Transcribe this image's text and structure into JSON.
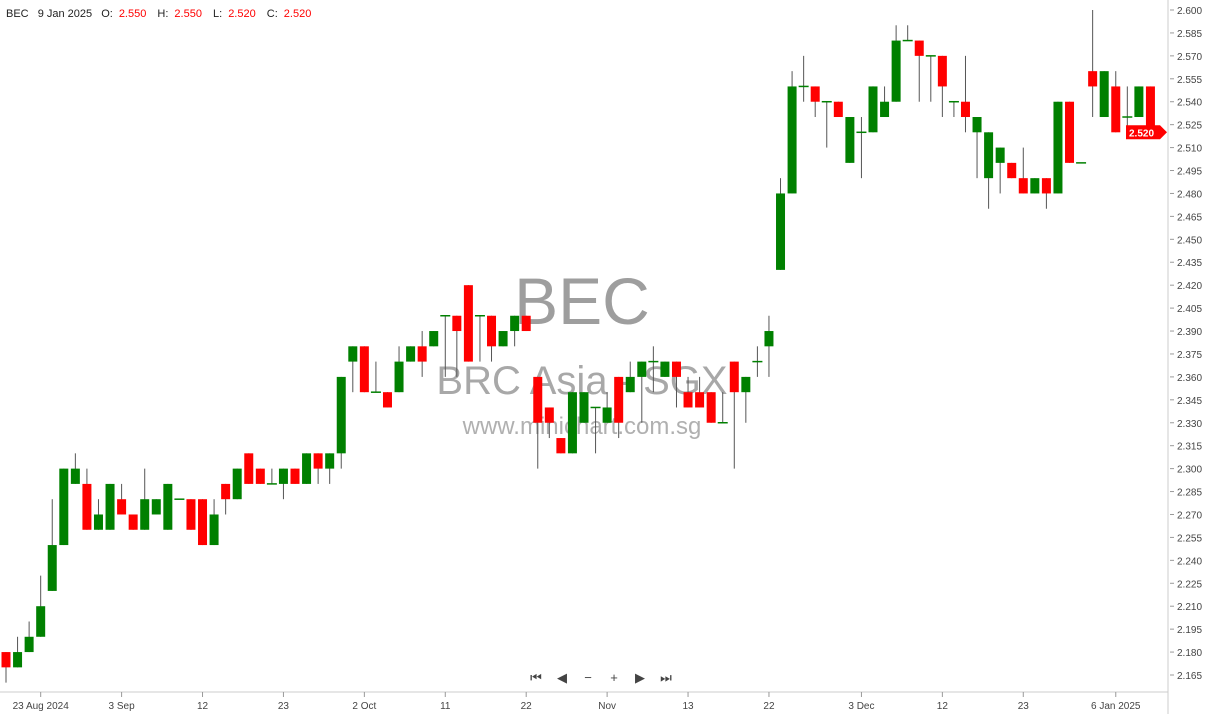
{
  "header": {
    "symbol": "BEC",
    "date": "9 Jan 2025",
    "o_label": "O:",
    "o": "2.550",
    "h_label": "H:",
    "h": "2.550",
    "l_label": "L:",
    "l": "2.520",
    "c_label": "C:",
    "c": "2.520"
  },
  "watermark": {
    "code": "BEC",
    "name": "BRC Asia - SGX",
    "site": "www.minichart.com.sg"
  },
  "nav": {
    "first": "⏮",
    "prev": "◀",
    "zoom_out": "−",
    "zoom_in": "+",
    "next": "▶",
    "last": "⏭"
  },
  "colors": {
    "up": "#008000",
    "down": "#ff0000",
    "wick": "#555555",
    "last_price": "#ff0000"
  },
  "chart_data": {
    "type": "candlestick",
    "title": "",
    "ylim": [
      2.165,
      2.6
    ],
    "y_ticks": [
      "2.600",
      "2.585",
      "2.570",
      "2.555",
      "2.540",
      "2.525",
      "2.510",
      "2.495",
      "2.480",
      "2.465",
      "2.450",
      "2.435",
      "2.420",
      "2.405",
      "2.390",
      "2.375",
      "2.360",
      "2.345",
      "2.330",
      "2.315",
      "2.300",
      "2.285",
      "2.270",
      "2.255",
      "2.240",
      "2.225",
      "2.210",
      "2.195",
      "2.180",
      "2.165"
    ],
    "x_ticks": [
      {
        "label": "23 Aug 2024",
        "index": 3
      },
      {
        "label": "3 Sep",
        "index": 10
      },
      {
        "label": "12",
        "index": 17
      },
      {
        "label": "23",
        "index": 24
      },
      {
        "label": "2 Oct",
        "index": 31
      },
      {
        "label": "11",
        "index": 38
      },
      {
        "label": "22",
        "index": 45
      },
      {
        "label": "Nov",
        "index": 52
      },
      {
        "label": "13",
        "index": 59
      },
      {
        "label": "22",
        "index": 66
      },
      {
        "label": "3 Dec",
        "index": 74
      },
      {
        "label": "12",
        "index": 81
      },
      {
        "label": "23",
        "index": 88
      },
      {
        "label": "6 Jan 2025",
        "index": 96
      }
    ],
    "last_price": "2.520",
    "grid": false,
    "ohlc_fields": [
      "open",
      "high",
      "low",
      "close"
    ],
    "ohlc": [
      [
        2.18,
        2.18,
        2.16,
        2.17
      ],
      [
        2.17,
        2.19,
        2.17,
        2.18
      ],
      [
        2.18,
        2.2,
        2.18,
        2.19
      ],
      [
        2.19,
        2.23,
        2.19,
        2.21
      ],
      [
        2.22,
        2.28,
        2.22,
        2.25
      ],
      [
        2.25,
        2.3,
        2.25,
        2.3
      ],
      [
        2.29,
        2.31,
        2.29,
        2.3
      ],
      [
        2.29,
        2.3,
        2.26,
        2.26
      ],
      [
        2.26,
        2.28,
        2.26,
        2.27
      ],
      [
        2.26,
        2.29,
        2.26,
        2.29
      ],
      [
        2.28,
        2.29,
        2.27,
        2.27
      ],
      [
        2.27,
        2.27,
        2.26,
        2.26
      ],
      [
        2.26,
        2.3,
        2.26,
        2.28
      ],
      [
        2.27,
        2.28,
        2.27,
        2.28
      ],
      [
        2.26,
        2.29,
        2.26,
        2.29
      ],
      [
        2.28,
        2.28,
        2.28,
        2.28
      ],
      [
        2.28,
        2.28,
        2.26,
        2.26
      ],
      [
        2.28,
        2.28,
        2.25,
        2.25
      ],
      [
        2.25,
        2.28,
        2.25,
        2.27
      ],
      [
        2.29,
        2.29,
        2.27,
        2.28
      ],
      [
        2.28,
        2.3,
        2.28,
        2.3
      ],
      [
        2.31,
        2.31,
        2.29,
        2.29
      ],
      [
        2.3,
        2.3,
        2.29,
        2.29
      ],
      [
        2.29,
        2.3,
        2.29,
        2.29
      ],
      [
        2.29,
        2.3,
        2.28,
        2.3
      ],
      [
        2.3,
        2.3,
        2.29,
        2.29
      ],
      [
        2.29,
        2.31,
        2.29,
        2.31
      ],
      [
        2.31,
        2.31,
        2.29,
        2.3
      ],
      [
        2.3,
        2.31,
        2.29,
        2.31
      ],
      [
        2.31,
        2.36,
        2.3,
        2.36
      ],
      [
        2.37,
        2.38,
        2.35,
        2.38
      ],
      [
        2.38,
        2.38,
        2.35,
        2.35
      ],
      [
        2.35,
        2.37,
        2.35,
        2.35
      ],
      [
        2.35,
        2.35,
        2.34,
        2.34
      ],
      [
        2.35,
        2.38,
        2.35,
        2.37
      ],
      [
        2.37,
        2.38,
        2.37,
        2.38
      ],
      [
        2.38,
        2.39,
        2.36,
        2.37
      ],
      [
        2.38,
        2.39,
        2.38,
        2.39
      ],
      [
        2.4,
        2.4,
        2.36,
        2.4
      ],
      [
        2.4,
        2.4,
        2.36,
        2.39
      ],
      [
        2.42,
        2.42,
        2.37,
        2.37
      ],
      [
        2.4,
        2.4,
        2.37,
        2.4
      ],
      [
        2.4,
        2.4,
        2.37,
        2.38
      ],
      [
        2.38,
        2.39,
        2.38,
        2.39
      ],
      [
        2.39,
        2.4,
        2.38,
        2.4
      ],
      [
        2.4,
        2.4,
        2.39,
        2.39
      ],
      [
        2.36,
        2.36,
        2.3,
        2.33
      ],
      [
        2.34,
        2.34,
        2.32,
        2.33
      ],
      [
        2.32,
        2.32,
        2.31,
        2.31
      ],
      [
        2.31,
        2.35,
        2.31,
        2.35
      ],
      [
        2.33,
        2.35,
        2.33,
        2.35
      ],
      [
        2.34,
        2.34,
        2.31,
        2.34
      ],
      [
        2.33,
        2.35,
        2.33,
        2.34
      ],
      [
        2.36,
        2.36,
        2.32,
        2.33
      ],
      [
        2.35,
        2.37,
        2.35,
        2.36
      ],
      [
        2.36,
        2.37,
        2.33,
        2.37
      ],
      [
        2.37,
        2.38,
        2.35,
        2.37
      ],
      [
        2.36,
        2.37,
        2.36,
        2.37
      ],
      [
        2.37,
        2.37,
        2.34,
        2.36
      ],
      [
        2.35,
        2.36,
        2.34,
        2.34
      ],
      [
        2.35,
        2.36,
        2.34,
        2.34
      ],
      [
        2.35,
        2.35,
        2.33,
        2.33
      ],
      [
        2.33,
        2.35,
        2.33,
        2.33
      ],
      [
        2.37,
        2.37,
        2.3,
        2.35
      ],
      [
        2.35,
        2.36,
        2.33,
        2.36
      ],
      [
        2.37,
        2.38,
        2.36,
        2.37
      ],
      [
        2.38,
        2.4,
        2.36,
        2.39
      ],
      [
        2.43,
        2.49,
        2.43,
        2.48
      ],
      [
        2.48,
        2.56,
        2.48,
        2.55
      ],
      [
        2.55,
        2.57,
        2.54,
        2.55
      ],
      [
        2.55,
        2.55,
        2.53,
        2.54
      ],
      [
        2.54,
        2.54,
        2.51,
        2.54
      ],
      [
        2.54,
        2.54,
        2.53,
        2.53
      ],
      [
        2.5,
        2.53,
        2.5,
        2.53
      ],
      [
        2.52,
        2.53,
        2.49,
        2.52
      ],
      [
        2.52,
        2.55,
        2.52,
        2.55
      ],
      [
        2.53,
        2.55,
        2.53,
        2.54
      ],
      [
        2.54,
        2.59,
        2.54,
        2.58
      ],
      [
        2.58,
        2.59,
        2.58,
        2.58
      ],
      [
        2.58,
        2.58,
        2.54,
        2.57
      ],
      [
        2.57,
        2.57,
        2.54,
        2.57
      ],
      [
        2.57,
        2.57,
        2.53,
        2.55
      ],
      [
        2.54,
        2.54,
        2.53,
        2.54
      ],
      [
        2.54,
        2.57,
        2.52,
        2.53
      ],
      [
        2.52,
        2.53,
        2.49,
        2.53
      ],
      [
        2.49,
        2.52,
        2.47,
        2.52
      ],
      [
        2.5,
        2.51,
        2.48,
        2.51
      ],
      [
        2.5,
        2.5,
        2.49,
        2.49
      ],
      [
        2.49,
        2.51,
        2.48,
        2.48
      ],
      [
        2.48,
        2.49,
        2.48,
        2.49
      ],
      [
        2.49,
        2.49,
        2.47,
        2.48
      ],
      [
        2.48,
        2.54,
        2.48,
        2.54
      ],
      [
        2.54,
        2.54,
        2.5,
        2.5
      ],
      [
        2.5,
        2.5,
        2.5,
        2.5
      ],
      [
        2.56,
        2.6,
        2.53,
        2.55
      ],
      [
        2.53,
        2.56,
        2.53,
        2.56
      ],
      [
        2.55,
        2.56,
        2.52,
        2.52
      ],
      [
        2.53,
        2.55,
        2.52,
        2.53
      ],
      [
        2.53,
        2.55,
        2.53,
        2.55
      ],
      [
        2.55,
        2.55,
        2.52,
        2.52
      ]
    ]
  }
}
